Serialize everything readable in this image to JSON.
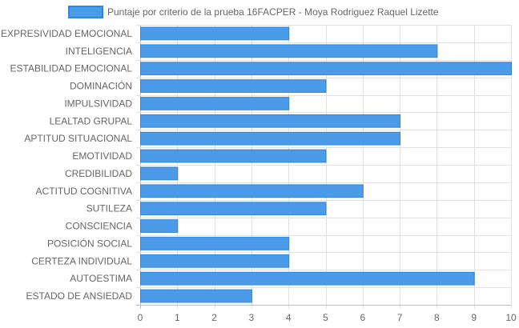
{
  "chart_data": {
    "type": "bar",
    "orientation": "horizontal",
    "legend": {
      "position": "top",
      "label": "Puntaje por criterio de la prueba 16FACPER - Moya Rodriguez Raquel Lizette"
    },
    "categories": [
      "EXPRESIVIDAD EMOCIONAL",
      "INTELIGENCIA",
      "ESTABILIDAD EMOCIONAL",
      "DOMINACIÓN",
      "IMPULSIVIDAD",
      "LEALTAD GRUPAL",
      "APTITUD SITUACIONAL",
      "EMOTIVIDAD",
      "CREDIBILIDAD",
      "ACTITUD COGNITIVA",
      "SUTILEZA",
      "CONSCIENCIA",
      "POSICIÓN SOCIAL",
      "CERTEZA INDIVIDUAL",
      "AUTOESTIMA",
      "ESTADO DE ANSIEDAD"
    ],
    "series": [
      {
        "name": "Puntaje por criterio de la prueba 16FACPER - Moya Rodriguez Raquel Lizette",
        "values": [
          4,
          8,
          10,
          5,
          4,
          7,
          7,
          5,
          1,
          6,
          5,
          1,
          4,
          4,
          9,
          3
        ]
      }
    ],
    "xlim": [
      0,
      10
    ],
    "xticks": [
      "0",
      "1",
      "2",
      "3",
      "4",
      "5",
      "6",
      "7",
      "8",
      "9",
      "10"
    ],
    "grid": true,
    "colors": {
      "bar_fill": "#4b9be8",
      "bar_stroke": "#2f86e0",
      "grid": "#e2e2e2",
      "axis": "#bdbdbd",
      "text": "#666666"
    }
  }
}
